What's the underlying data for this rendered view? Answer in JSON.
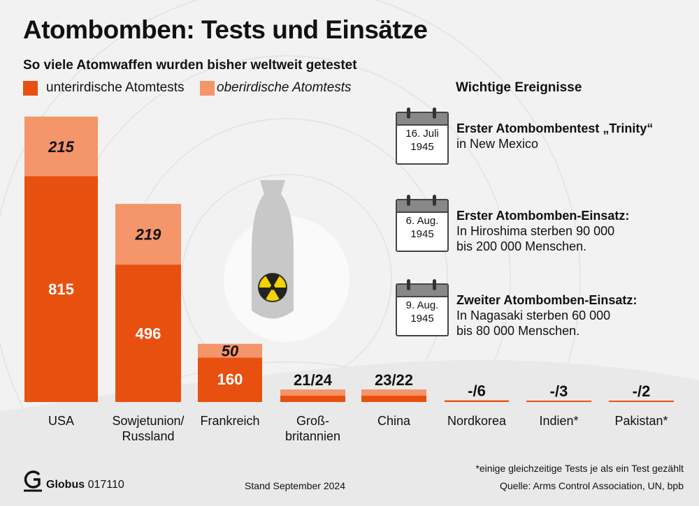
{
  "title": "Atombomben: Tests und Einsätze",
  "subtitle": "So viele Atomwaffen wurden bisher weltweit getestet",
  "legend": [
    {
      "label": "unterirdische Atomtests",
      "color": "#e8500f"
    },
    {
      "label": "oberirdische Atomtests",
      "color": "#f4956a"
    }
  ],
  "chart_data": {
    "type": "bar",
    "stacked": true,
    "categories": [
      "USA",
      "Sowjetunion/ Russland",
      "Frankreich",
      "Groß- britannien",
      "China",
      "Nordkorea",
      "Indien*",
      "Pakistan*"
    ],
    "category_lines": [
      [
        "USA"
      ],
      [
        "Sowjetunion/",
        "Russland"
      ],
      [
        "Frankreich"
      ],
      [
        "Groß-",
        "britannien"
      ],
      [
        "China"
      ],
      [
        "Nordkorea"
      ],
      [
        "Indien*"
      ],
      [
        "Pakistan*"
      ]
    ],
    "series": [
      {
        "name": "unterirdische Atomtests",
        "values": [
          815,
          496,
          160,
          24,
          22,
          6,
          3,
          2
        ]
      },
      {
        "name": "oberirdische Atomtests",
        "values": [
          215,
          219,
          50,
          21,
          23,
          0,
          0,
          0
        ]
      }
    ],
    "labels": [
      {
        "under": "815",
        "over": "215"
      },
      {
        "under": "496",
        "over": "219"
      },
      {
        "under": "160",
        "over": "50"
      },
      {
        "combined": "21/24"
      },
      {
        "combined": "23/22"
      },
      {
        "combined": "-/6"
      },
      {
        "combined": "-/3"
      },
      {
        "combined": "-/2"
      }
    ],
    "grid": false
  },
  "events": {
    "heading": "Wichtige Ereignisse",
    "items": [
      {
        "date": [
          "16. Juli",
          "1945"
        ],
        "title": "Erster Atombombentest „Trinity“",
        "lines": [
          "in New Mexico"
        ]
      },
      {
        "date": [
          "6. Aug.",
          "1945"
        ],
        "title": "Erster Atombomben-Einsatz:",
        "lines": [
          "In Hiroshima sterben 90 000",
          "bis 200 000 Menschen."
        ]
      },
      {
        "date": [
          "9. Aug.",
          "1945"
        ],
        "title": "Zweiter Atombomben-Einsatz:",
        "lines": [
          "In Nagasaki sterben 60 000",
          "bis 80 000 Menschen."
        ]
      }
    ]
  },
  "footer": {
    "brand": "Globus",
    "code": "017110",
    "stand": "Stand September 2024",
    "note": "*einige gleichzeitige Tests je als ein Test gezählt",
    "source": "Quelle: Arms Control Association, UN, bpb"
  }
}
